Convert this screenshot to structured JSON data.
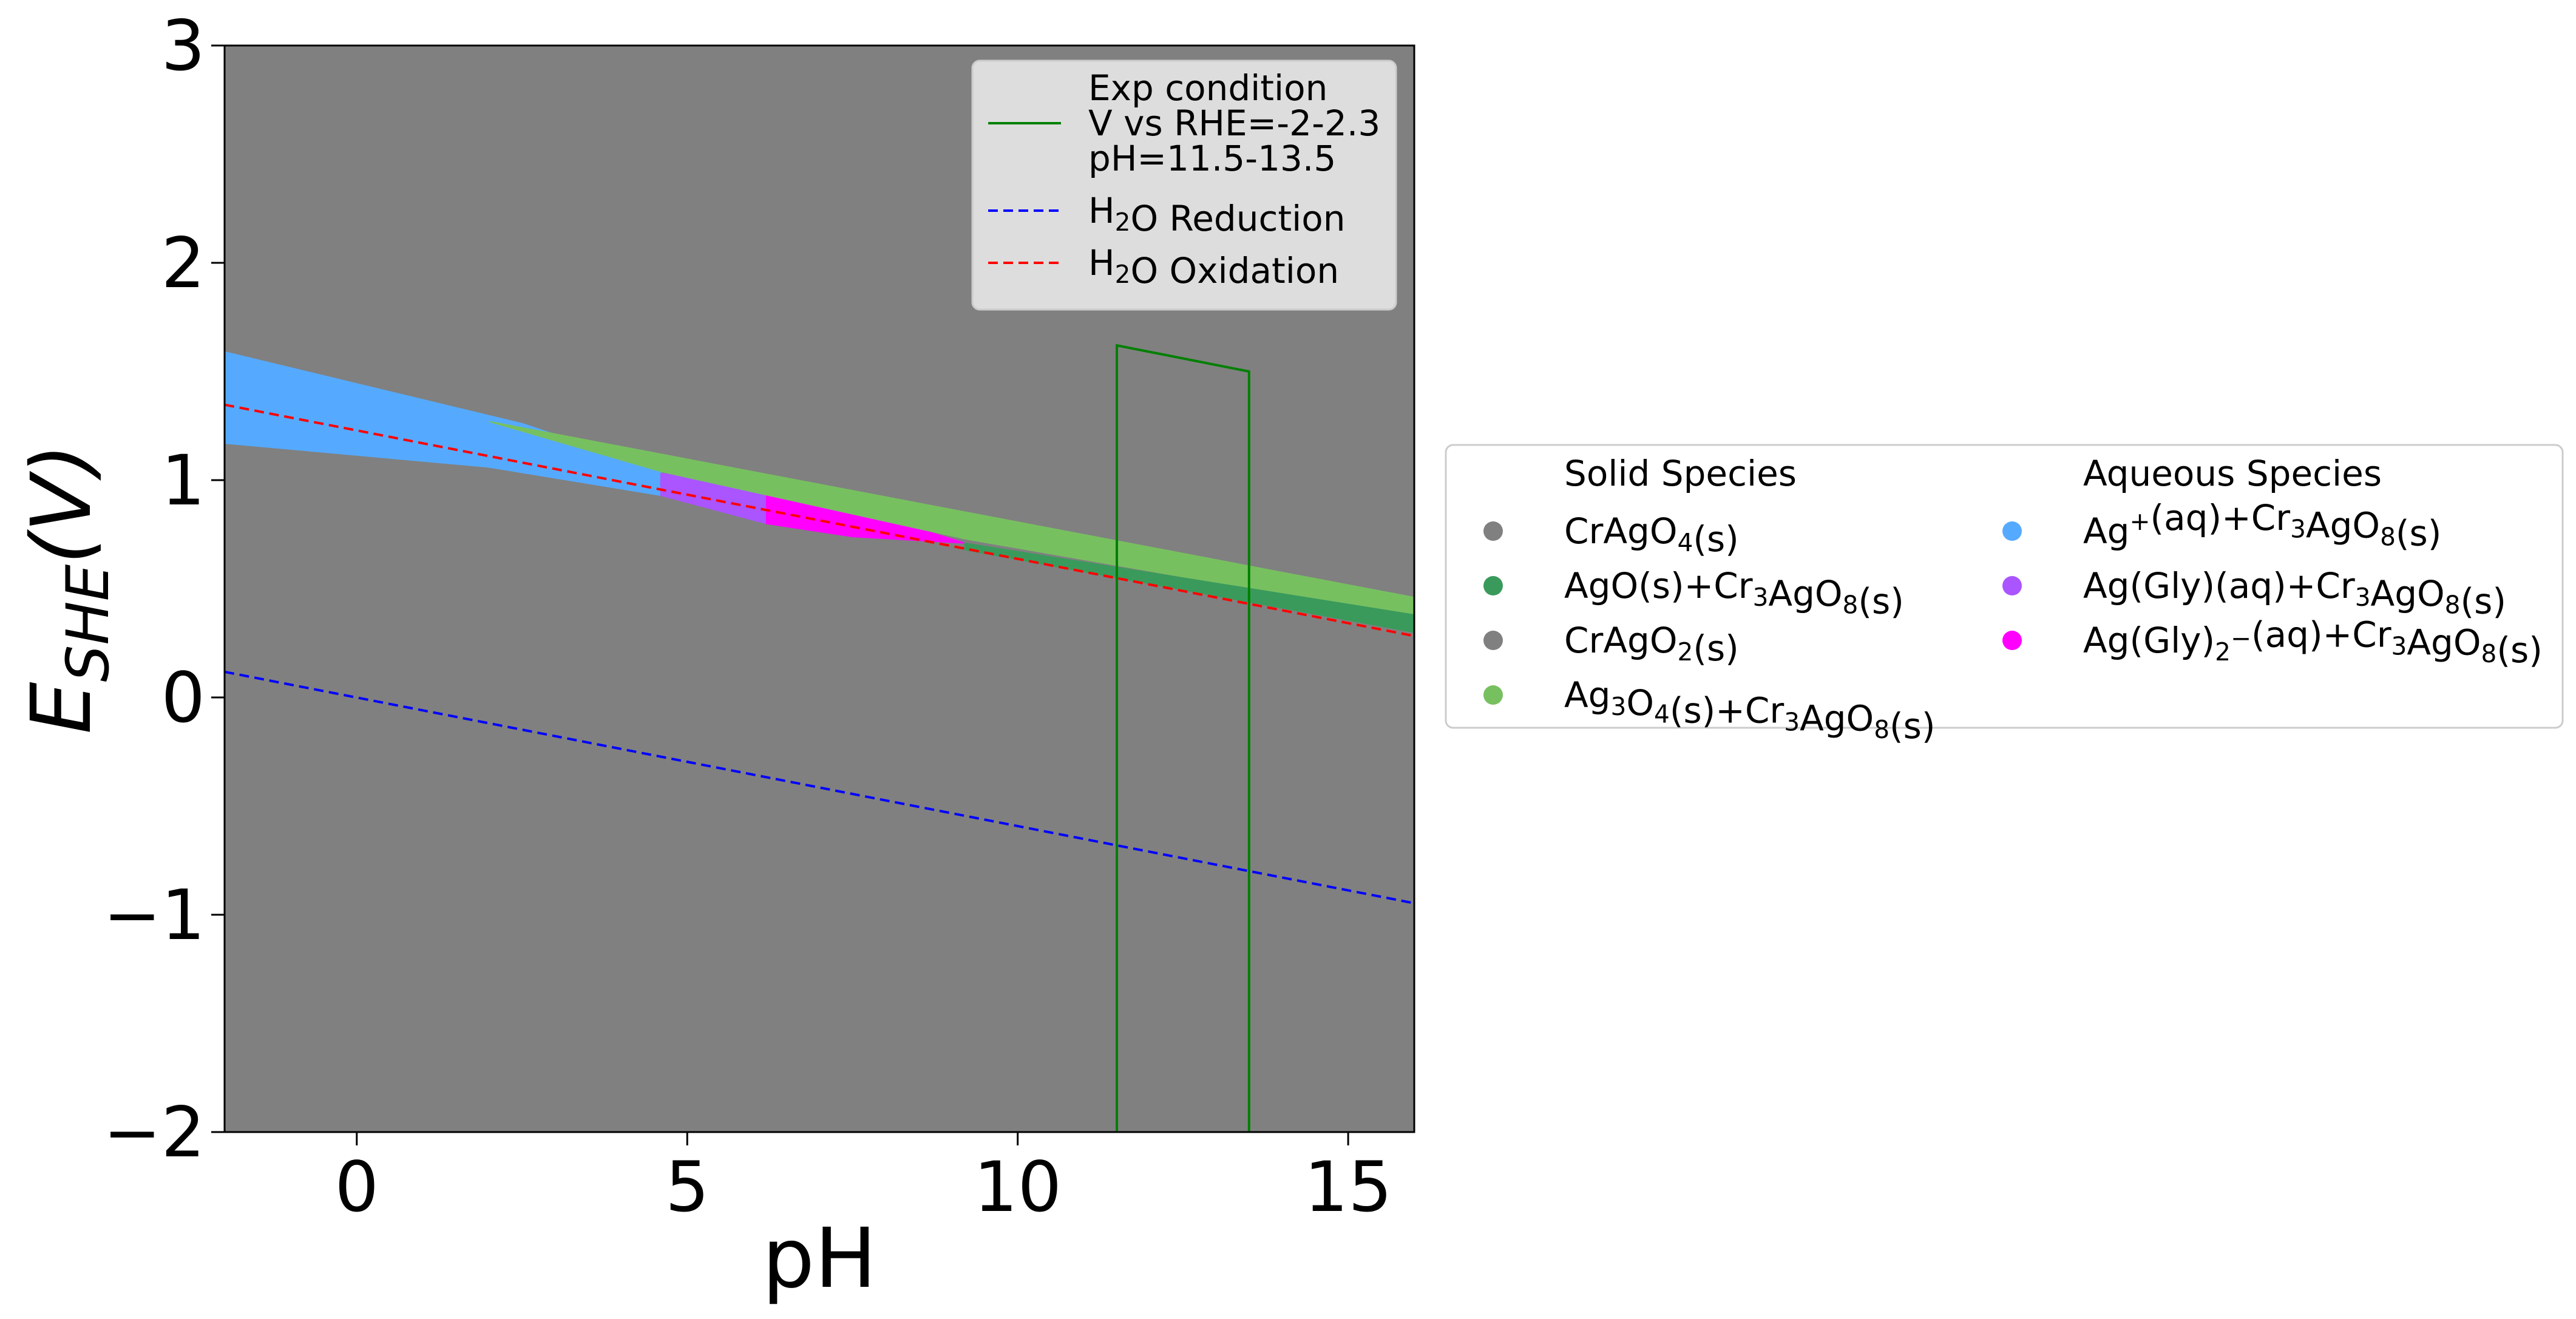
{
  "chart_data": {
    "type": "area",
    "xlabel": "pH",
    "ylabel": "E_SHE(V)",
    "xlim": [
      -2,
      16
    ],
    "ylim": [
      -2,
      3
    ],
    "xticks": [
      0,
      5,
      10,
      15
    ],
    "yticks": [
      -2,
      -1,
      0,
      1,
      2,
      3
    ],
    "xtick_labels": [
      "0",
      "5",
      "10",
      "15"
    ],
    "ytick_labels": [
      "−2",
      "−1",
      "0",
      "1",
      "2",
      "3"
    ],
    "background_color": "#808080",
    "regions": [
      {
        "name": "Ag⁺(aq)+Cr₃AgO₈(s)",
        "color": "#55aaff",
        "polygon": [
          [
            -2,
            1.59
          ],
          [
            2.5,
            1.26
          ],
          [
            4.6,
            1.05
          ],
          [
            4.6,
            0.93
          ],
          [
            2.0,
            1.06
          ],
          [
            -2,
            1.17
          ]
        ]
      },
      {
        "name": "Ag(Gly)(aq)+Cr₃AgO₈(s)",
        "color": "#aa55ff",
        "polygon": [
          [
            4.6,
            1.03
          ],
          [
            6.2,
            1.0
          ],
          [
            6.2,
            0.8
          ],
          [
            4.6,
            0.93
          ]
        ]
      },
      {
        "name": "Ag(Gly)₂⁻(aq)+Cr₃AgO₈(s)",
        "color": "#ff00ff",
        "polygon": [
          [
            6.2,
            0.98
          ],
          [
            7.0,
            0.92
          ],
          [
            9.2,
            0.71
          ],
          [
            7.5,
            0.74
          ],
          [
            6.2,
            0.8
          ]
        ]
      },
      {
        "name": "Ag₃O₄(s)+Cr₃AgO₈(s)",
        "color": "#77c060",
        "polygon": [
          [
            2.0,
            1.27
          ],
          [
            16,
            0.46
          ],
          [
            16,
            0.37
          ],
          [
            9.2,
            0.73
          ],
          [
            4.6,
            1.04
          ]
        ]
      },
      {
        "name": "AgO(s)+Cr₃AgO₈(s)",
        "color": "#3a9a5c",
        "polygon": [
          [
            9.2,
            0.71
          ],
          [
            16,
            0.38
          ],
          [
            16,
            0.3
          ],
          [
            9.2,
            0.68
          ]
        ]
      }
    ],
    "series": [
      {
        "name": "H₂O Reduction",
        "style": "dashed",
        "color": "#0000ff",
        "x": [
          -2,
          16
        ],
        "y": [
          0.118,
          -0.947
        ]
      },
      {
        "name": "H₂O Oxidation",
        "style": "dashed",
        "color": "#ff0000",
        "x": [
          -2,
          16
        ],
        "y": [
          1.347,
          0.283
        ]
      },
      {
        "name": "Exp condition V vs RHE=-2-2.3 pH=11.5-13.5",
        "style": "solid",
        "color": "#008000",
        "x": [
          11.5,
          11.5,
          13.5,
          13.5
        ],
        "y": [
          -2,
          1.62,
          1.5,
          -2
        ]
      }
    ],
    "legend_top": {
      "placement": "top-right",
      "entries": [
        {
          "lines": [
            "Exp condition",
            "V vs RHE=-2-2.3",
            "pH=11.5-13.5"
          ],
          "color": "#008000",
          "style": "solid"
        },
        {
          "lines": [
            "H₂O Reduction"
          ],
          "color": "#0000ff",
          "style": "dashed"
        },
        {
          "lines": [
            "H₂O Oxidation"
          ],
          "color": "#ff0000",
          "style": "dashed"
        }
      ]
    },
    "legend_side": {
      "placement": "right",
      "headers": [
        "Solid Species",
        "Aqueous Species"
      ],
      "columns": [
        [
          {
            "label": "CrAgO₄(s)",
            "color": "#808080"
          },
          {
            "label": "AgO(s)+Cr₃AgO₈(s)",
            "color": "#3a9a5c"
          },
          {
            "label": "CrAgO₂(s)",
            "color": "#808080"
          },
          {
            "label": "Ag₃O₄(s)+Cr₃AgO₈(s)",
            "color": "#77c060"
          }
        ],
        [
          {
            "label": "Ag⁺(aq)+Cr₃AgO₈(s)",
            "color": "#55aaff"
          },
          {
            "label": "Ag(Gly)(aq)+Cr₃AgO₈(s)",
            "color": "#aa55ff"
          },
          {
            "label": "Ag(Gly)₂⁻(aq)+Cr₃AgO₈(s)",
            "color": "#ff00ff"
          }
        ]
      ]
    }
  }
}
